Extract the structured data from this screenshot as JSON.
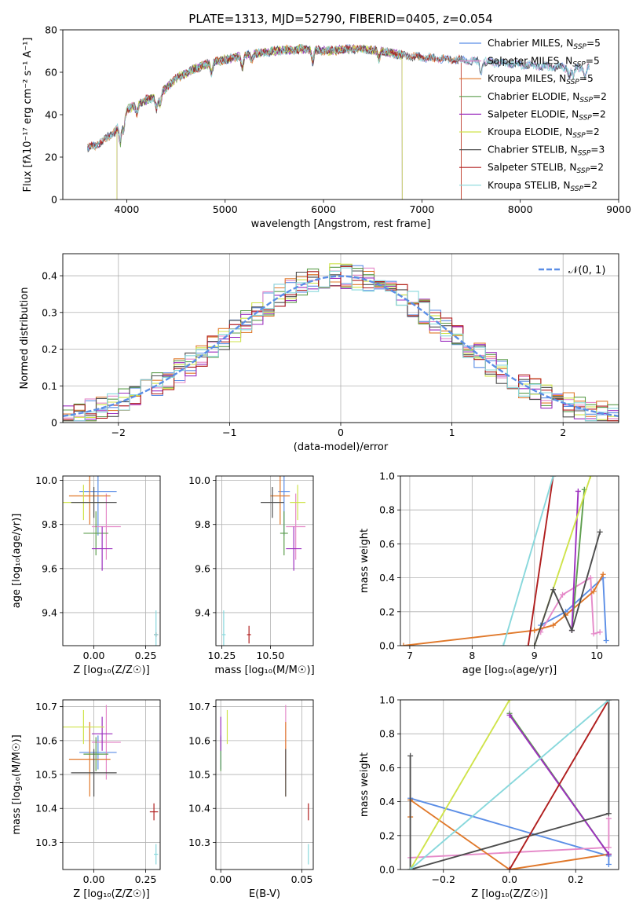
{
  "figure": {
    "title": "PLATE=1313, MJD=52790, FIBERID=0405, z=0.054"
  },
  "colors": {
    "Chabrier MILES": "#5b8ee6",
    "Salpeter MILES": "#e58ac9",
    "Kroupa MILES": "#e0782a",
    "Chabrier ELODIE": "#5e9e4e",
    "Salpeter ELODIE": "#9c2fbf",
    "Kroupa ELODIE": "#cfe34a",
    "Chabrier STELIB": "#4d4d4d",
    "Salpeter STELIB": "#b01e1e",
    "Kroupa STELIB": "#88d8dc",
    "normal": "#5b8ee6"
  },
  "chart_data": [
    {
      "id": "spectrum",
      "type": "line",
      "title": "PLATE=1313, MJD=52790, FIBERID=0405, z=0.054",
      "xlabel": "wavelength [Angstrom, rest frame]",
      "ylabel": "Flux [fλ10⁻¹⁷ erg cm⁻² s⁻¹ A⁻¹]",
      "xlim": [
        3350,
        9000
      ],
      "ylim": [
        0,
        80
      ],
      "xticks": [
        4000,
        5000,
        6000,
        7000,
        8000,
        9000
      ],
      "yticks": [
        0,
        20,
        40,
        60,
        80
      ],
      "grid": false,
      "legend_position": "right",
      "legend": [
        {
          "label": "Chabrier MILES, N",
          "sub": "SSP",
          "suffix": "=5"
        },
        {
          "label": "Salpeter MILES, N",
          "sub": "SSP",
          "suffix": "=5"
        },
        {
          "label": "Kroupa MILES, N",
          "sub": "SSP",
          "suffix": "=5"
        },
        {
          "label": "Chabrier ELODIE, N",
          "sub": "SSP",
          "suffix": "=2"
        },
        {
          "label": "Salpeter ELODIE, N",
          "sub": "SSP",
          "suffix": "=2"
        },
        {
          "label": "Kroupa ELODIE, N",
          "sub": "SSP",
          "suffix": "=2"
        },
        {
          "label": "Chabrier STELIB, N",
          "sub": "SSP",
          "suffix": "=3"
        },
        {
          "label": "Salpeter STELIB, N",
          "sub": "SSP",
          "suffix": "=2"
        },
        {
          "label": "Kroupa STELIB, N",
          "sub": "SSP",
          "suffix": "=2"
        }
      ],
      "continuum": {
        "x": [
          3600,
          3700,
          3800,
          3900,
          4000,
          4100,
          4200,
          4300,
          4500,
          4700,
          4900,
          5200,
          5500,
          5800,
          6000,
          6300,
          6600,
          6800,
          7000,
          7300,
          7600,
          7900,
          8200,
          8500,
          8700
        ],
        "y": [
          24,
          26,
          29,
          33,
          42,
          45,
          47,
          48,
          57,
          62,
          65,
          68,
          70,
          71,
          70,
          71,
          70,
          68,
          67,
          66,
          65,
          64,
          63,
          62,
          62
        ]
      },
      "truncations": {
        "Salpeter MILES": [
          3600,
          8700
        ],
        "Kroupa MILES": [
          3600,
          7400
        ],
        "Chabrier ELODIE": [
          3900,
          6800
        ],
        "Salpeter ELODIE": [
          3900,
          6800
        ],
        "Kroupa ELODIE": [
          3900,
          6800
        ],
        "Chabrier STELIB": [
          3600,
          8700
        ],
        "Salpeter STELIB": [
          3600,
          7400
        ],
        "Kroupa STELIB": [
          3600,
          8700
        ],
        "Chabrier MILES": [
          3600,
          8700
        ]
      }
    },
    {
      "id": "residuals",
      "type": "histogram",
      "xlabel": "(data-model)/error",
      "ylabel": "Normed distribution",
      "xlim": [
        -2.5,
        2.5
      ],
      "ylim": [
        0,
        0.46
      ],
      "xticks": [
        -2,
        -1,
        0,
        1,
        2
      ],
      "yticks": [
        0.0,
        0.1,
        0.2,
        0.3,
        0.4
      ],
      "grid": true,
      "legend_position": "top-right",
      "legend": [
        {
          "label": "𝒩(0, 1)"
        }
      ],
      "bin_width": 0.1,
      "bins_from": -2.5,
      "bins": 50
    },
    {
      "id": "age_vs_Z",
      "type": "scatter",
      "xlabel": "Z [log₁₀(Z/Z☉)]",
      "ylabel": "age  [log₁₀(age/yr)]",
      "xlim": [
        -0.15,
        0.32
      ],
      "ylim": [
        9.25,
        10.02
      ],
      "xticks": [
        0.0,
        0.25
      ],
      "xticklabels": [
        "0.00",
        "0.25"
      ],
      "yticks": [
        9.4,
        9.6,
        9.8,
        10.0
      ],
      "grid": true,
      "points": [
        {
          "model": "Chabrier MILES",
          "x": 0.02,
          "y": 9.95,
          "xerr": 0.09,
          "yerr": 0.2
        },
        {
          "model": "Salpeter MILES",
          "x": 0.06,
          "y": 9.79,
          "xerr": 0.07,
          "yerr": 0.15
        },
        {
          "model": "Kroupa MILES",
          "x": -0.02,
          "y": 9.93,
          "xerr": 0.1,
          "yerr": 0.13
        },
        {
          "model": "Chabrier ELODIE",
          "x": 0.01,
          "y": 9.76,
          "xerr": 0.06,
          "yerr": 0.1
        },
        {
          "model": "Salpeter ELODIE",
          "x": 0.04,
          "y": 9.69,
          "xerr": 0.05,
          "yerr": 0.1
        },
        {
          "model": "Kroupa ELODIE",
          "x": -0.05,
          "y": 9.9,
          "xerr": 0.1,
          "yerr": 0.08
        },
        {
          "model": "Chabrier STELIB",
          "x": 0.0,
          "y": 9.9,
          "xerr": 0.11,
          "yerr": 0.07
        },
        {
          "model": "Salpeter STELIB",
          "x": 0.3,
          "y": 9.3,
          "xerr": 0.01,
          "yerr": 0.01
        },
        {
          "model": "Kroupa STELIB",
          "x": 0.3,
          "y": 9.3,
          "xerr": 0.01,
          "yerr": 0.11
        }
      ]
    },
    {
      "id": "age_vs_mass",
      "type": "scatter",
      "xlabel": "mass [log₁₀(M/M☉)]",
      "ylabel": "",
      "xlim": [
        10.22,
        10.72
      ],
      "ylim": [
        9.25,
        10.02
      ],
      "xticks": [
        10.25,
        10.5
      ],
      "xticklabels": [
        "10.25",
        "10.50"
      ],
      "yticks": [
        9.4,
        9.6,
        9.8,
        10.0
      ],
      "grid": true,
      "points": [
        {
          "model": "Chabrier MILES",
          "x": 10.57,
          "y": 9.95,
          "xerr": 0.03,
          "yerr": 0.2
        },
        {
          "model": "Salpeter MILES",
          "x": 10.63,
          "y": 9.79,
          "xerr": 0.05,
          "yerr": 0.15
        },
        {
          "model": "Kroupa MILES",
          "x": 10.55,
          "y": 9.93,
          "xerr": 0.05,
          "yerr": 0.13
        },
        {
          "model": "Chabrier ELODIE",
          "x": 10.57,
          "y": 9.76,
          "xerr": 0.02,
          "yerr": 0.1
        },
        {
          "model": "Salpeter ELODIE",
          "x": 10.62,
          "y": 9.69,
          "xerr": 0.04,
          "yerr": 0.1
        },
        {
          "model": "Kroupa ELODIE",
          "x": 10.64,
          "y": 9.9,
          "xerr": 0.04,
          "yerr": 0.08
        },
        {
          "model": "Chabrier STELIB",
          "x": 10.51,
          "y": 9.9,
          "xerr": 0.06,
          "yerr": 0.07
        },
        {
          "model": "Salpeter STELIB",
          "x": 10.39,
          "y": 9.3,
          "xerr": 0.01,
          "yerr": 0.04
        },
        {
          "model": "Kroupa STELIB",
          "x": 10.26,
          "y": 9.3,
          "xerr": 0.01,
          "yerr": 0.11
        }
      ]
    },
    {
      "id": "weight_vs_age",
      "type": "line",
      "xlabel": "age  [log₁₀(age/yr)]",
      "ylabel": "mass weight",
      "xlim": [
        6.85,
        10.35
      ],
      "ylim": [
        0,
        1.0
      ],
      "xticks": [
        7,
        8,
        9,
        10
      ],
      "yticks": [
        0.0,
        0.2,
        0.4,
        0.6,
        0.8,
        1.0
      ],
      "grid": true,
      "series": [
        {
          "model": "Chabrier MILES",
          "x": [
            9.1,
            9.5,
            10.1,
            10.15
          ],
          "y": [
            0.12,
            0.2,
            0.4,
            0.03
          ]
        },
        {
          "model": "Salpeter MILES",
          "x": [
            9.1,
            9.45,
            9.9,
            9.95,
            10.05
          ],
          "y": [
            0.08,
            0.3,
            0.4,
            0.07,
            0.08
          ]
        },
        {
          "model": "Kroupa MILES",
          "x": [
            6.9,
            9.0,
            9.3,
            9.5,
            9.95,
            10.1
          ],
          "y": [
            0.0,
            0.09,
            0.12,
            0.18,
            0.32,
            0.42
          ]
        },
        {
          "model": "Chabrier ELODIE",
          "x": [
            9.6,
            9.8
          ],
          "y": [
            0.09,
            0.92
          ]
        },
        {
          "model": "Salpeter ELODIE",
          "x": [
            9.6,
            9.7
          ],
          "y": [
            0.09,
            0.91
          ]
        },
        {
          "model": "Kroupa ELODIE",
          "x": [
            9.0,
            9.9
          ],
          "y": [
            0.0,
            1.0
          ]
        },
        {
          "model": "Chabrier STELIB",
          "x": [
            9.0,
            9.3,
            9.6,
            10.05
          ],
          "y": [
            0.0,
            0.33,
            0.09,
            0.67
          ]
        },
        {
          "model": "Salpeter STELIB",
          "x": [
            8.9,
            9.3
          ],
          "y": [
            0.0,
            1.0
          ]
        },
        {
          "model": "Kroupa STELIB",
          "x": [
            8.5,
            9.3
          ],
          "y": [
            0.0,
            1.0
          ]
        }
      ]
    },
    {
      "id": "mass_vs_Z",
      "type": "scatter",
      "xlabel": "Z [log₁₀(Z/Z☉)]",
      "ylabel": "mass [log₁₀(M/M☉)]",
      "xlim": [
        -0.15,
        0.32
      ],
      "ylim": [
        10.22,
        10.72
      ],
      "xticks": [
        0.0,
        0.25
      ],
      "xticklabels": [
        "0.00",
        "0.25"
      ],
      "yticks": [
        10.3,
        10.4,
        10.5,
        10.6,
        10.7
      ],
      "grid": true,
      "points": [
        {
          "model": "Chabrier MILES",
          "x": 0.02,
          "y": 10.565,
          "xerr": 0.09,
          "yerr": 0.05
        },
        {
          "model": "Salpeter MILES",
          "x": 0.06,
          "y": 10.595,
          "xerr": 0.07,
          "yerr": 0.11
        },
        {
          "model": "Kroupa MILES",
          "x": -0.02,
          "y": 10.545,
          "xerr": 0.1,
          "yerr": 0.11
        },
        {
          "model": "Chabrier ELODIE",
          "x": 0.01,
          "y": 10.56,
          "xerr": 0.06,
          "yerr": 0.05
        },
        {
          "model": "Salpeter ELODIE",
          "x": 0.04,
          "y": 10.62,
          "xerr": 0.05,
          "yerr": 0.05
        },
        {
          "model": "Kroupa ELODIE",
          "x": -0.05,
          "y": 10.64,
          "xerr": 0.1,
          "yerr": 0.05
        },
        {
          "model": "Chabrier STELIB",
          "x": 0.0,
          "y": 10.505,
          "xerr": 0.11,
          "yerr": 0.07
        },
        {
          "model": "Salpeter STELIB",
          "x": 0.29,
          "y": 10.39,
          "xerr": 0.02,
          "yerr": 0.025
        },
        {
          "model": "Kroupa STELIB",
          "x": 0.3,
          "y": 10.265,
          "xerr": 0.01,
          "yerr": 0.03
        }
      ]
    },
    {
      "id": "mass_vs_ebv",
      "type": "scatter",
      "xlabel": "E(B-V)",
      "ylabel": "",
      "xlim": [
        -0.003,
        0.057
      ],
      "ylim": [
        10.22,
        10.72
      ],
      "xticks": [
        0.0,
        0.05
      ],
      "xticklabels": [
        "0.00",
        "0.05"
      ],
      "yticks": [
        10.3,
        10.4,
        10.5,
        10.6,
        10.7
      ],
      "grid": true,
      "points": [
        {
          "model": "Chabrier MILES",
          "x": 0.0,
          "y": 10.565,
          "xerr": 0,
          "yerr": 0.05
        },
        {
          "model": "Salpeter MILES",
          "x": 0.04,
          "y": 10.595,
          "xerr": 0,
          "yerr": 0.11
        },
        {
          "model": "Kroupa MILES",
          "x": 0.04,
          "y": 10.545,
          "xerr": 0,
          "yerr": 0.11
        },
        {
          "model": "Chabrier ELODIE",
          "x": 0.0,
          "y": 10.56,
          "xerr": 0,
          "yerr": 0.05
        },
        {
          "model": "Salpeter ELODIE",
          "x": 0.0,
          "y": 10.62,
          "xerr": 0,
          "yerr": 0.05
        },
        {
          "model": "Kroupa ELODIE",
          "x": 0.004,
          "y": 10.64,
          "xerr": 0,
          "yerr": 0.05
        },
        {
          "model": "Chabrier STELIB",
          "x": 0.04,
          "y": 10.505,
          "xerr": 0,
          "yerr": 0.07
        },
        {
          "model": "Salpeter STELIB",
          "x": 0.054,
          "y": 10.39,
          "xerr": 0,
          "yerr": 0.025
        },
        {
          "model": "Kroupa STELIB",
          "x": 0.054,
          "y": 10.265,
          "xerr": 0,
          "yerr": 0.03
        }
      ]
    },
    {
      "id": "weight_vs_Z",
      "type": "line",
      "xlabel": "Z [log₁₀(Z/Z☉)]",
      "ylabel": "mass weight",
      "xlim": [
        -0.33,
        0.33
      ],
      "ylim": [
        0,
        1.0
      ],
      "xticks": [
        -0.2,
        0.0,
        0.2
      ],
      "xticklabels": [
        "−0.2",
        "0.0",
        "0.2"
      ],
      "yticks": [
        0.0,
        0.2,
        0.4,
        0.6,
        0.8,
        1.0
      ],
      "grid": true,
      "series": [
        {
          "model": "Chabrier MILES",
          "x": [
            -0.3,
            0.3,
            0.3
          ],
          "y": [
            0.42,
            0.08,
            0.03
          ]
        },
        {
          "model": "Salpeter MILES",
          "x": [
            -0.3,
            0.3,
            0.3
          ],
          "y": [
            0.07,
            0.13,
            0.3
          ]
        },
        {
          "model": "Kroupa MILES",
          "x": [
            -0.3,
            -0.3,
            0.0,
            0.3
          ],
          "y": [
            0.31,
            0.41,
            0.0,
            0.09
          ]
        },
        {
          "model": "Chabrier ELODIE",
          "x": [
            0.0,
            0.3
          ],
          "y": [
            0.92,
            0.09
          ]
        },
        {
          "model": "Salpeter ELODIE",
          "x": [
            0.0,
            0.3
          ],
          "y": [
            0.91,
            0.09
          ]
        },
        {
          "model": "Kroupa ELODIE",
          "x": [
            -0.3,
            0.0
          ],
          "y": [
            0.0,
            1.0
          ]
        },
        {
          "model": "Chabrier STELIB",
          "x": [
            -0.3,
            -0.3,
            0.3,
            0.3
          ],
          "y": [
            0.67,
            0.0,
            0.33,
            1.0
          ]
        },
        {
          "model": "Salpeter STELIB",
          "x": [
            0.0,
            0.3
          ],
          "y": [
            0.0,
            1.0
          ]
        },
        {
          "model": "Kroupa STELIB",
          "x": [
            -0.3,
            0.3
          ],
          "y": [
            0.0,
            1.0
          ]
        }
      ]
    }
  ]
}
